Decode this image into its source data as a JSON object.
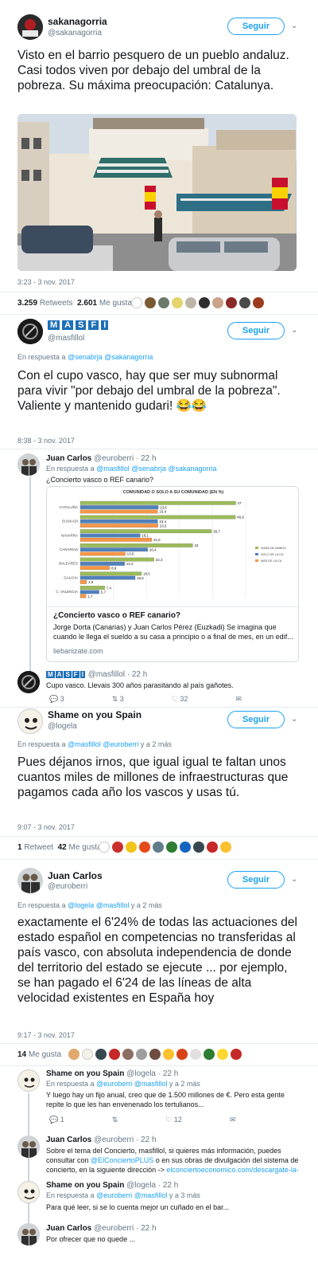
{
  "tweet1": {
    "name": "sakanagorria",
    "handle": "@sakanagorria",
    "follow_label": "Seguir",
    "text": "Visto en el barrio pesquero de un pueblo andaluz. Casi todos viven por debajo del umbral de la pobreza. Su máxima preocupación: Catalunya.",
    "timestamp": "3:23 - 3 nov. 2017",
    "retweets_count": "3.259",
    "retweets_label": "Retweets",
    "likes_count": "2.601",
    "likes_label": "Me gusta"
  },
  "tweet2": {
    "name_letters": [
      "M",
      "A",
      "S",
      "F",
      "I"
    ],
    "handle": "@masfillol",
    "follow_label": "Seguir",
    "reply_prefix": "En respuesta a",
    "reply_handles": "@senabrja @sakanagorria",
    "text": "Con el cupo vasco, hay que ser muy subnormal para vivir \"por debajo del umbral de la pobreza\". Valiente y mantenido gudari! 😂😂",
    "timestamp": "8:38 - 3 nov. 2017"
  },
  "reply_juan1": {
    "name": "Juan Carlos",
    "meta": "@euroberri · 22 h",
    "reply_prefix": "En respuesta a",
    "reply_handles": "@masfillol @senabrja @sakanagorria",
    "text": "¿Concierto vasco o REF canario?",
    "card_title": "¿Concierto vasco o REF canario?",
    "card_desc": "Jorge Dorta (Canarias) y Juan Carlos Pérez (Euzkadi) Se imagina que cuando le llega el sueldo a su casa a principio o a final de mes, en un edif...",
    "card_domain": "liebanizate.com"
  },
  "chart_data": {
    "type": "bar",
    "title": "COMUNIDAD O SOLO A SU COMUNIDAD (EN %)",
    "categories": [
      "CATALUÑA",
      "EUSKADI",
      "NAVARRA",
      "CANARIAS",
      "BALEARES",
      "GALICIA",
      "C. VALENCIA"
    ],
    "series": [
      {
        "name": "SUMA DE AMBOS",
        "color": "#9bbb59",
        "values": [
          47,
          46.9,
          39.7,
          34,
          22.3,
          18.5,
          7.4
        ]
      },
      {
        "name": "SOLO DE LA CA",
        "color": "#4f81bd",
        "values": [
          23.6,
          23.4,
          18.1,
          20.4,
          13.4,
          16.6,
          5.7
        ]
      },
      {
        "name": "MÁS DE LA CA",
        "color": "#f79646",
        "values": [
          23.4,
          23.5,
          21.6,
          13.6,
          8.9,
          1.9,
          1.7
        ]
      }
    ],
    "value_labels": [
      [
        "47",
        "23,6",
        "23,4"
      ],
      [
        "46,9",
        "23,4",
        "23,5"
      ],
      [
        "39,7",
        "18,1",
        "21,6"
      ],
      [
        "34",
        "20,4",
        "13,6"
      ],
      [
        "22,3",
        "13,4",
        "8,9"
      ],
      [
        "18,5",
        "16,6",
        "1,9"
      ],
      [
        "7,4",
        "5,7",
        "1,7"
      ]
    ],
    "xlim": [
      0,
      50
    ]
  },
  "reply_masfi": {
    "meta": "@masfillol · 22 h",
    "text": "Cupo vasco. Llevais 300 años parasitando al país gañotes.",
    "reply_count": "3",
    "rt_count": "3",
    "like_count": "32"
  },
  "tweet3": {
    "name": "Shame on you Spain",
    "handle": "@logela",
    "follow_label": "Seguir",
    "reply_prefix": "En respuesta a",
    "reply_handles": "@masfillol @euroberri",
    "reply_suffix": "y a 2 más",
    "text": "Pues déjanos irnos, que igual igual te faltan unos cuantos miles de millones de infraestructuras que pagamos cada año los vascos y usas tú.",
    "timestamp": "9:07 - 3 nov. 2017",
    "retweets_count": "1",
    "retweets_label": "Retweet",
    "likes_count": "42",
    "likes_label": "Me gusta"
  },
  "tweet4": {
    "name": "Juan Carlos",
    "handle": "@euroberri",
    "follow_label": "Seguir",
    "reply_prefix": "En respuesta a",
    "reply_handles": "@logela @masfillol",
    "reply_suffix": "y a 2 más",
    "text": "exactamente el 6'24% de todas las actuaciones del estado español en competencias no transferidas al país vasco, con absoluta independencia de donde del territorio del estado se ejecute ... por ejemplo, se han pagado el 6'24 de las líneas de alta velocidad existentes en España hoy",
    "timestamp": "9:17 - 3 nov. 2017",
    "likes_count": "14",
    "likes_label": "Me gusta"
  },
  "reply_shame1": {
    "name": "Shame on you Spain",
    "meta": "@logela · 22 h",
    "reply_prefix": "En respuesta a",
    "reply_handles": "@euroberri @masfillol",
    "reply_suffix": "y a 2 más",
    "text": "Y luego hay un fijo anual, creo que de 1.500 millones de €. Pero esta gente repite lo que les han envenenado los tertulianos...",
    "reply_count": "1",
    "rt_count": "",
    "like_count": "12"
  },
  "reply_juan2": {
    "name": "Juan Carlos",
    "meta": "@euroberri · 22 h",
    "text_a": "Sobre el tema del Concierto, masfillol, si quieres más información, puedes consultar con",
    "link_a": "@ElConciertoPLUS",
    "text_b": "o en sus obras de divulgación del sistema de concierto, en la siguiente dirección ->",
    "link_b": "elconciertoeconomico.com/descargate-la-"
  },
  "reply_shame2": {
    "name": "Shame on you Spain",
    "meta": "@logela · 22 h",
    "reply_prefix": "En respuesta a",
    "reply_handles": "@euroberri @masfillol",
    "reply_suffix": "y a 3 más",
    "text": "Para qué leer, si se lo cuenta mejor un cuñado en el bar..."
  },
  "reply_juan3": {
    "name": "Juan Carlos",
    "meta": "@euroberri · 22 h",
    "text": "Por ofrecer que no quede ..."
  },
  "colors": {
    "accent": "#1da1f2",
    "text": "#14171a",
    "muted": "#657786",
    "separator": "#e6ecf0"
  }
}
